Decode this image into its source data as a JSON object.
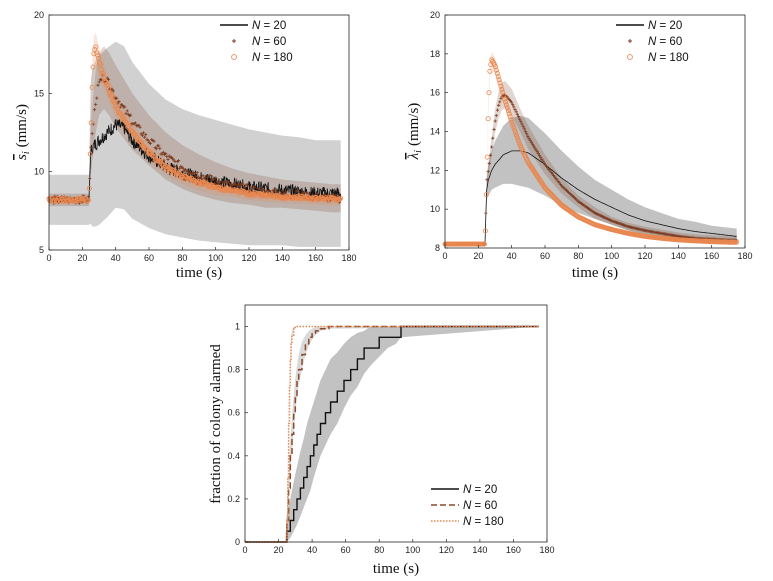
{
  "chart_data": [
    {
      "id": "p1",
      "type": "line",
      "panel": "top-left",
      "xlabel": "time (s)",
      "ylabel": "s̄_ι (mm/s)",
      "ylabel_plain": "s",
      "ylabel_sub": "i",
      "ylabel_unit": "(mm/s)",
      "xlim": [
        0,
        180
      ],
      "ylim": [
        5,
        20
      ],
      "xticks": [
        "0",
        "20",
        "40",
        "60",
        "80",
        "100",
        "120",
        "140",
        "160",
        "180"
      ],
      "yticks": [
        "5",
        "10",
        "15",
        "20"
      ],
      "legend_position": "top-right",
      "series": [
        {
          "name": "N = 20",
          "label_n": "N",
          "label_rest": " = 20",
          "marker": "line",
          "color": "#111111",
          "x": [
            0,
            24,
            25,
            26,
            28,
            30,
            35,
            40,
            45,
            50,
            55,
            60,
            70,
            80,
            90,
            100,
            110,
            120,
            130,
            140,
            150,
            160,
            170,
            175
          ],
          "y": [
            8.2,
            8.2,
            11.2,
            11.5,
            11.8,
            12.0,
            12.5,
            13.0,
            12.8,
            12.0,
            11.5,
            11.0,
            10.3,
            9.9,
            9.6,
            9.4,
            9.2,
            9.0,
            8.9,
            8.8,
            8.7,
            8.6,
            8.6,
            8.6
          ],
          "band": [
            1.6,
            1.6,
            4.5,
            5.0,
            5.3,
            5.4,
            5.4,
            5.3,
            5.2,
            5.0,
            4.8,
            4.6,
            4.3,
            4.1,
            4.0,
            3.9,
            3.8,
            3.7,
            3.6,
            3.5,
            3.5,
            3.4,
            3.4,
            3.4
          ]
        },
        {
          "name": "N = 60",
          "label_n": "N",
          "label_rest": " = 60",
          "marker": "plus",
          "color": "#7a3a1e",
          "x": [
            0,
            24,
            25,
            26,
            28,
            30,
            33,
            36,
            40,
            45,
            50,
            60,
            70,
            80,
            90,
            100,
            110,
            120,
            130,
            140,
            150,
            160,
            170,
            175
          ],
          "y": [
            8.2,
            8.2,
            11.2,
            12.5,
            14.5,
            15.6,
            16.0,
            15.6,
            14.8,
            14.0,
            13.2,
            12.0,
            11.0,
            10.3,
            9.8,
            9.4,
            9.1,
            8.9,
            8.7,
            8.6,
            8.5,
            8.4,
            8.3,
            8.3
          ],
          "band": [
            0.4,
            0.4,
            1.5,
            1.8,
            2.0,
            2.0,
            2.0,
            2.0,
            2.0,
            1.9,
            1.8,
            1.6,
            1.5,
            1.4,
            1.3,
            1.2,
            1.1,
            1.0,
            1.0,
            0.9,
            0.9,
            0.9,
            0.9,
            0.9
          ]
        },
        {
          "name": "N = 180",
          "label_n": "N",
          "label_rest": " = 180",
          "marker": "circle",
          "color": "#e8874f",
          "x": [
            0,
            24,
            25,
            26,
            27,
            28,
            30,
            33,
            36,
            40,
            45,
            50,
            60,
            70,
            80,
            90,
            100,
            110,
            120,
            130,
            140,
            150,
            160,
            170,
            175
          ],
          "y": [
            8.2,
            8.2,
            12.0,
            16.0,
            17.6,
            17.9,
            17.0,
            16.0,
            15.2,
            14.2,
            13.3,
            12.5,
            11.2,
            10.3,
            9.7,
            9.3,
            9.0,
            8.8,
            8.6,
            8.5,
            8.4,
            8.35,
            8.3,
            8.25,
            8.25
          ],
          "band": [
            0.2,
            0.2,
            0.8,
            1.0,
            1.0,
            1.0,
            0.9,
            0.8,
            0.8,
            0.7,
            0.7,
            0.6,
            0.6,
            0.5,
            0.5,
            0.5,
            0.5,
            0.4,
            0.4,
            0.4,
            0.4,
            0.4,
            0.4,
            0.4,
            0.4
          ]
        }
      ]
    },
    {
      "id": "p2",
      "type": "line",
      "panel": "top-right",
      "xlabel": "time (s)",
      "ylabel": "λ̄_ι (mm/s)",
      "ylabel_plain": "λ",
      "ylabel_sub": "i",
      "ylabel_unit": "(mm/s)",
      "xlim": [
        0,
        180
      ],
      "ylim": [
        8,
        20
      ],
      "xticks": [
        "0",
        "20",
        "40",
        "60",
        "80",
        "100",
        "120",
        "140",
        "160",
        "180"
      ],
      "yticks": [
        "8",
        "10",
        "12",
        "14",
        "16",
        "18",
        "20"
      ],
      "legend_position": "top-right",
      "series": [
        {
          "name": "N = 20",
          "label_n": "N",
          "label_rest": " = 20",
          "marker": "line",
          "color": "#111111",
          "x": [
            0,
            24,
            25,
            26,
            28,
            30,
            35,
            40,
            45,
            50,
            55,
            60,
            70,
            80,
            90,
            100,
            110,
            120,
            130,
            140,
            150,
            160,
            170,
            175
          ],
          "y": [
            8.2,
            8.2,
            11.0,
            11.5,
            12.0,
            12.3,
            12.8,
            13.0,
            13.0,
            12.9,
            12.6,
            12.3,
            11.6,
            11.0,
            10.5,
            10.1,
            9.7,
            9.4,
            9.2,
            9.0,
            8.85,
            8.75,
            8.65,
            8.6
          ],
          "band": [
            0,
            0,
            0.5,
            0.8,
            1.0,
            1.2,
            1.5,
            1.7,
            1.8,
            1.8,
            1.7,
            1.6,
            1.4,
            1.2,
            1.0,
            0.9,
            0.8,
            0.7,
            0.6,
            0.5,
            0.5,
            0.4,
            0.4,
            0.4
          ]
        },
        {
          "name": "N = 60",
          "label_n": "N",
          "label_rest": " = 60",
          "marker": "plus",
          "color": "#7a3a1e",
          "x": [
            0,
            24,
            25,
            26,
            28,
            30,
            32,
            34,
            36,
            40,
            45,
            50,
            60,
            70,
            80,
            90,
            100,
            110,
            120,
            130,
            140,
            150,
            160,
            170,
            175
          ],
          "y": [
            8.2,
            8.2,
            11.4,
            12.0,
            13.2,
            14.5,
            15.3,
            15.8,
            15.9,
            15.5,
            14.6,
            13.7,
            12.3,
            11.2,
            10.4,
            9.8,
            9.4,
            9.1,
            8.9,
            8.75,
            8.6,
            8.5,
            8.45,
            8.4,
            8.4
          ],
          "band": [
            0,
            0,
            0.3,
            0.4,
            0.5,
            0.6,
            0.7,
            0.7,
            0.7,
            0.7,
            0.6,
            0.6,
            0.5,
            0.4,
            0.3,
            0.3,
            0.2,
            0.2,
            0.2,
            0.2,
            0.2,
            0.2,
            0.2,
            0.2,
            0.2
          ]
        },
        {
          "name": "N = 180",
          "label_n": "N",
          "label_rest": " = 180",
          "marker": "circle",
          "color": "#e8874f",
          "x": [
            0,
            24,
            25,
            26,
            27,
            28,
            30,
            33,
            36,
            40,
            45,
            50,
            60,
            70,
            80,
            90,
            100,
            110,
            120,
            130,
            140,
            150,
            160,
            170,
            175
          ],
          "y": [
            8.2,
            8.2,
            11.6,
            15.2,
            17.2,
            17.7,
            17.4,
            16.5,
            15.6,
            14.5,
            13.3,
            12.4,
            11.1,
            10.2,
            9.6,
            9.2,
            8.95,
            8.75,
            8.6,
            8.5,
            8.42,
            8.37,
            8.33,
            8.3,
            8.3
          ],
          "band": [
            0,
            0,
            0.3,
            0.4,
            0.4,
            0.4,
            0.4,
            0.35,
            0.3,
            0.3,
            0.3,
            0.25,
            0.2,
            0.2,
            0.15,
            0.15,
            0.1,
            0.1,
            0.1,
            0.1,
            0.1,
            0.1,
            0.1,
            0.1,
            0.1
          ]
        }
      ]
    },
    {
      "id": "p3",
      "type": "line",
      "panel": "bottom-center",
      "xlabel": "time (s)",
      "ylabel": "fraction of colony alarmed",
      "xlim": [
        0,
        180
      ],
      "ylim": [
        0,
        1.1
      ],
      "xticks": [
        "0",
        "20",
        "40",
        "60",
        "80",
        "100",
        "120",
        "140",
        "160",
        "180"
      ],
      "yticks": [
        "0",
        "0.2",
        "0.4",
        "0.6",
        "0.8",
        "1"
      ],
      "yticks_values": [
        0,
        0.2,
        0.4,
        0.6,
        0.8,
        1
      ],
      "legend_position": "bottom-right",
      "series": [
        {
          "name": "N = 20",
          "label_n": "N",
          "label_rest": " = 20",
          "marker": "solid",
          "color": "#111111",
          "x": [
            0,
            24,
            25,
            27,
            29,
            31,
            33,
            35,
            37,
            39,
            41,
            43,
            45,
            48,
            51,
            55,
            59,
            63,
            67,
            71,
            75,
            80,
            85,
            90,
            93,
            175
          ],
          "y": [
            0,
            0,
            0.05,
            0.1,
            0.15,
            0.2,
            0.25,
            0.3,
            0.35,
            0.4,
            0.45,
            0.5,
            0.55,
            0.6,
            0.65,
            0.7,
            0.75,
            0.8,
            0.85,
            0.9,
            0.9,
            0.95,
            0.95,
            0.95,
            1,
            1
          ],
          "band_lo": [
            0,
            0,
            0,
            0.02,
            0.05,
            0.08,
            0.12,
            0.16,
            0.2,
            0.24,
            0.3,
            0.35,
            0.4,
            0.45,
            0.5,
            0.55,
            0.62,
            0.68,
            0.72,
            0.78,
            0.82,
            0.86,
            0.9,
            0.92,
            0.95,
            1
          ],
          "band_hi": [
            0,
            0,
            0.12,
            0.2,
            0.28,
            0.35,
            0.42,
            0.48,
            0.55,
            0.6,
            0.65,
            0.7,
            0.75,
            0.8,
            0.85,
            0.88,
            0.92,
            0.95,
            0.97,
            0.98,
            1,
            1,
            1,
            1,
            1,
            1
          ]
        },
        {
          "name": "N = 60",
          "label_n": "N",
          "label_rest": " = 60",
          "marker": "dashed",
          "color": "#8b4a2b",
          "x": [
            0,
            24,
            25,
            26,
            27,
            28,
            29,
            30,
            31,
            32,
            34,
            36,
            38,
            40,
            42,
            45,
            50,
            175
          ],
          "y": [
            0,
            0,
            0.1,
            0.25,
            0.4,
            0.5,
            0.6,
            0.68,
            0.75,
            0.8,
            0.87,
            0.92,
            0.95,
            0.97,
            0.98,
            0.99,
            1,
            1
          ],
          "band_lo": [
            0,
            0,
            0.06,
            0.18,
            0.32,
            0.42,
            0.52,
            0.6,
            0.67,
            0.73,
            0.8,
            0.87,
            0.91,
            0.94,
            0.96,
            0.98,
            0.99,
            1
          ],
          "band_hi": [
            0,
            0,
            0.14,
            0.32,
            0.48,
            0.58,
            0.68,
            0.76,
            0.82,
            0.87,
            0.93,
            0.96,
            0.98,
            0.99,
            1,
            1,
            1,
            1
          ]
        },
        {
          "name": "N = 180",
          "label_n": "N",
          "label_rest": " = 180",
          "marker": "dotted",
          "color": "#e8874f",
          "x": [
            0,
            24,
            25,
            25.5,
            26,
            26.5,
            27,
            27.5,
            28,
            29,
            30,
            31,
            175
          ],
          "y": [
            0,
            0,
            0.1,
            0.3,
            0.55,
            0.72,
            0.84,
            0.92,
            0.96,
            0.99,
            1,
            1,
            1
          ],
          "band_lo": [
            0,
            0,
            0.08,
            0.26,
            0.5,
            0.68,
            0.8,
            0.89,
            0.94,
            0.98,
            1,
            1,
            1
          ],
          "band_hi": [
            0,
            0,
            0.12,
            0.34,
            0.6,
            0.76,
            0.88,
            0.95,
            0.98,
            1,
            1,
            1,
            1
          ]
        }
      ]
    }
  ]
}
